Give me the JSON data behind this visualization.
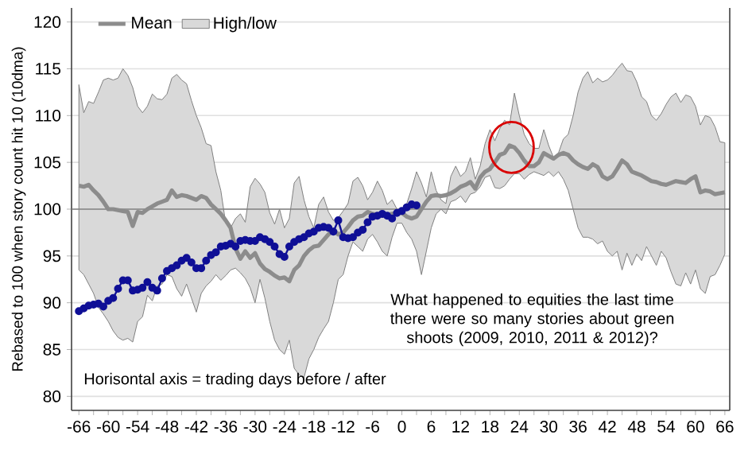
{
  "chart_data": {
    "type": "line",
    "ylabel": "Rebased to 100 when story count hit 10 (10dma)",
    "annotations": [
      "Horisontal axis = trading days before / after",
      "What happened to equities the last time there were so many stories about green shoots (2009, 2010, 2011 & 2012)?"
    ],
    "x": [
      -66,
      -65,
      -64,
      -63,
      -62,
      -61,
      -60,
      -59,
      -58,
      -57,
      -56,
      -55,
      -54,
      -53,
      -52,
      -51,
      -50,
      -49,
      -48,
      -47,
      -46,
      -45,
      -44,
      -43,
      -42,
      -41,
      -40,
      -39,
      -38,
      -37,
      -36,
      -35,
      -34,
      -33,
      -32,
      -31,
      -30,
      -29,
      -28,
      -27,
      -26,
      -25,
      -24,
      -23,
      -22,
      -21,
      -20,
      -19,
      -18,
      -17,
      -16,
      -15,
      -14,
      -13,
      -12,
      -11,
      -10,
      -9,
      -8,
      -7,
      -6,
      -5,
      -4,
      -3,
      -2,
      -1,
      0,
      1,
      2,
      3,
      4,
      5,
      6,
      7,
      8,
      9,
      10,
      11,
      12,
      13,
      14,
      15,
      16,
      17,
      18,
      19,
      20,
      21,
      22,
      23,
      24,
      25,
      26,
      27,
      28,
      29,
      30,
      31,
      32,
      33,
      34,
      35,
      36,
      37,
      38,
      39,
      40,
      41,
      42,
      43,
      44,
      45,
      46,
      47,
      48,
      49,
      50,
      51,
      52,
      53,
      54,
      55,
      56,
      57,
      58,
      59,
      60,
      61,
      62,
      63,
      64,
      65,
      66
    ],
    "series": [
      {
        "name": "High/low",
        "color": "#d9d9d9",
        "values": [
          null,
          null,
          null,
          null,
          null,
          null,
          null,
          null,
          null,
          null,
          null,
          null,
          null,
          null,
          null,
          null,
          null,
          null,
          null,
          null,
          null,
          null,
          null,
          null,
          null,
          null,
          null,
          null,
          null,
          null,
          null,
          null,
          null,
          null,
          null,
          null,
          null,
          null,
          null,
          null,
          null,
          null,
          null,
          null,
          null,
          null,
          null,
          null,
          null,
          null,
          null,
          null,
          null,
          null,
          null,
          null,
          null,
          null,
          null,
          null,
          null,
          null,
          null,
          null,
          null,
          null,
          null,
          null,
          null,
          null,
          null,
          null,
          null,
          null,
          null,
          null,
          null,
          null,
          null,
          null,
          null,
          null,
          null,
          null,
          null,
          null,
          null,
          null,
          null,
          null,
          null,
          null,
          null,
          null,
          null,
          null,
          null,
          null,
          null,
          null,
          null,
          null,
          null,
          null,
          null,
          null,
          null,
          null,
          null,
          null,
          null,
          null,
          null,
          null,
          null,
          null,
          null,
          null,
          null,
          null,
          null,
          null,
          null,
          null,
          null,
          null,
          null,
          null,
          null,
          null,
          null,
          null,
          null
        ],
        "upper": [
          113.3,
          110.3,
          111.5,
          111.3,
          112.5,
          113.8,
          114.0,
          113.8,
          114.0,
          115.0,
          114.3,
          113.0,
          111.0,
          110.3,
          111.0,
          112.3,
          111.8,
          111.7,
          112.3,
          114.0,
          114.4,
          113.8,
          113.4,
          111.6,
          110.0,
          108.7,
          107.0,
          106.8,
          104.0,
          102.0,
          98.5,
          98.0,
          99.0,
          99.5,
          98.6,
          102.4,
          103.3,
          102.7,
          101.8,
          99.6,
          98.4,
          100.0,
          98.0,
          99.0,
          102.8,
          103.5,
          101.0,
          99.2,
          98.0,
          100.5,
          101.3,
          99.7,
          98.8,
          99.1,
          99.8,
          100.6,
          103.0,
          103.4,
          102.5,
          101.0,
          101.8,
          103.0,
          102.0,
          100.5,
          101.0,
          100.0,
          99.6,
          100.6,
          102.2,
          104.0,
          102.8,
          101.3,
          104.0,
          102.0,
          101.0,
          100.6,
          103.5,
          104.6,
          103.5,
          104.0,
          105.5,
          103.2,
          104.6,
          107.0,
          108.5,
          107.3,
          108.6,
          109.5,
          109.0,
          112.4,
          110.0,
          108.0,
          107.0,
          106.5,
          106.5,
          108.5,
          106.8,
          105.5,
          106.0,
          107.5,
          108.0,
          110.0,
          112.5,
          114.0,
          114.7,
          113.5,
          114.0,
          113.6,
          113.8,
          114.3,
          115.0,
          115.6,
          114.8,
          114.7,
          113.6,
          112.0,
          111.5,
          110.0,
          109.5,
          110.2,
          111.2,
          112.0,
          112.4,
          111.4,
          112.2,
          112.0,
          111.0,
          109.0,
          110.0,
          109.8,
          108.8,
          107.2,
          107.1
        ],
        "lower": [
          93.5,
          93.0,
          92.0,
          91.0,
          89.5,
          88.8,
          88.0,
          87.0,
          86.3,
          86.0,
          86.2,
          85.8,
          88.0,
          88.5,
          90.8,
          90.2,
          91.8,
          92.0,
          93.0,
          92.8,
          91.5,
          90.7,
          92.0,
          90.5,
          89.0,
          91.0,
          91.8,
          92.3,
          93.0,
          92.4,
          92.9,
          93.5,
          93.7,
          93.2,
          92.6,
          91.6,
          90.0,
          92.5,
          90.5,
          88.0,
          86.0,
          85.0,
          84.5,
          86.0,
          83.0,
          82.3,
          82.0,
          84.0,
          85.0,
          86.3,
          87.2,
          88.0,
          90.0,
          92.5,
          93.0,
          95.0,
          96.5,
          96.0,
          95.5,
          96.8,
          97.3,
          96.5,
          95.5,
          95.0,
          97.0,
          98.5,
          98.5,
          97.5,
          96.8,
          95.5,
          93.0,
          95.5,
          98.0,
          99.5,
          100.0,
          99.5,
          100.8,
          101.0,
          101.4,
          100.7,
          101.6,
          101.8,
          102.4,
          103.4,
          103.6,
          102.3,
          102.2,
          102.5,
          103.2,
          103.8,
          103.8,
          103.2,
          103.7,
          104.0,
          103.8,
          103.6,
          104.0,
          103.5,
          104.0,
          103.2,
          102.0,
          100.0,
          98.0,
          97.0,
          97.0,
          96.8,
          96.3,
          96.6,
          95.5,
          95.0,
          95.5,
          93.5,
          95.3,
          94.0,
          95.2,
          94.5,
          96.0,
          95.0,
          94.0,
          95.5,
          94.8,
          93.3,
          92.0,
          91.8,
          93.2,
          92.0,
          93.5,
          91.5,
          91.0,
          92.8,
          93.0,
          94.0,
          95.2
        ]
      },
      {
        "name": "Mean",
        "color": "#8c8c8c",
        "marker": "none",
        "values": [
          102.5,
          102.4,
          102.6,
          102.0,
          101.5,
          100.8,
          100.0,
          100.0,
          99.9,
          99.8,
          99.7,
          98.2,
          99.7,
          99.6,
          100.0,
          100.3,
          100.6,
          100.8,
          101.0,
          102.0,
          101.3,
          101.5,
          101.4,
          101.2,
          101.0,
          101.4,
          101.2,
          100.5,
          100.0,
          99.5,
          98.8,
          98.0,
          95.8,
          94.7,
          95.5,
          94.8,
          95.3,
          94.2,
          93.6,
          93.3,
          92.9,
          92.6,
          92.7,
          92.3,
          93.5,
          94.0,
          95.0,
          95.6,
          96.0,
          96.1,
          96.7,
          97.3,
          97.8,
          97.3,
          97.5,
          98.1,
          98.8,
          99.2,
          99.3,
          99.7,
          99.5,
          99.4,
          99.3,
          99.4,
          99.5,
          99.6,
          99.6,
          99.2,
          99.0,
          99.2,
          100.0,
          100.8,
          101.4,
          101.5,
          101.4,
          101.5,
          101.7,
          102.0,
          102.4,
          102.6,
          102.9,
          102.2,
          103.4,
          104.0,
          104.3,
          105.0,
          105.8,
          106.0,
          106.8,
          106.6,
          106.0,
          105.2,
          104.6,
          104.6,
          105.0,
          106.0,
          105.7,
          105.4,
          105.8,
          106.0,
          105.8,
          105.2,
          104.8,
          104.5,
          104.3,
          104.8,
          104.5,
          103.5,
          103.2,
          103.5,
          104.3,
          105.2,
          104.8,
          104.0,
          103.8,
          103.6,
          103.3,
          103.0,
          102.9,
          102.7,
          102.6,
          102.8,
          103.0,
          102.9,
          102.8,
          103.2,
          103.5,
          101.8,
          102.0,
          101.9,
          101.6,
          101.7,
          101.8
        ]
      },
      {
        "color": "#0f0f96",
        "marker": "circle",
        "x": [
          -66,
          -65,
          -64,
          -63,
          -62,
          -61,
          -60,
          -59,
          -58,
          -57,
          -56,
          -55,
          -54,
          -53,
          -52,
          -51,
          -50,
          -49,
          -48,
          -47,
          -46,
          -45,
          -44,
          -43,
          -42,
          -41,
          -40,
          -39,
          -38,
          -37,
          -36,
          -35,
          -34,
          -33,
          -32,
          -31,
          -30,
          -29,
          -28,
          -27,
          -26,
          -25,
          -24,
          -23,
          -22,
          -21,
          -20,
          -19,
          -18,
          -17,
          -16,
          -15,
          -14,
          -13,
          -12,
          -11,
          -10,
          -9,
          -8,
          -7,
          -6,
          -5,
          -4,
          -3,
          -2,
          -1,
          0,
          1,
          2,
          3
        ],
        "values": [
          89.1,
          89.4,
          89.7,
          89.8,
          89.9,
          89.6,
          90.2,
          90.5,
          91.5,
          92.4,
          92.4,
          91.3,
          91.4,
          91.6,
          92.2,
          91.6,
          91.3,
          92.6,
          93.4,
          93.7,
          94.0,
          94.5,
          94.8,
          94.3,
          93.7,
          93.7,
          94.5,
          95.1,
          95.4,
          96.0,
          96.1,
          96.3,
          96.0,
          96.6,
          96.7,
          96.6,
          96.6,
          97.0,
          96.8,
          96.5,
          96.0,
          95.2,
          94.9,
          96.0,
          96.5,
          96.8,
          97.0,
          97.4,
          97.6,
          98.0,
          98.1,
          98.0,
          97.6,
          98.8,
          97.0,
          96.9,
          97.0,
          97.5,
          97.8,
          98.6,
          99.2,
          99.3,
          99.5,
          99.3,
          99.0,
          99.6,
          99.8,
          100.2,
          100.5,
          100.4
        ]
      }
    ],
    "ref_lines": [
      {
        "axis": "y",
        "value": 100,
        "color": "#7f7f7f"
      }
    ],
    "xlim": [
      -67.5,
      67
    ],
    "ylim": [
      78.5,
      121.5
    ],
    "xticks": [
      -66,
      -60,
      -54,
      -48,
      -42,
      -36,
      -30,
      -24,
      -18,
      -12,
      -6,
      0,
      6,
      12,
      18,
      24,
      30,
      36,
      42,
      48,
      54,
      60,
      66
    ],
    "yticks": [
      80,
      85,
      90,
      95,
      100,
      105,
      110,
      115,
      120
    ],
    "grid": "y",
    "legend": "top left",
    "line_style": "solid"
  }
}
